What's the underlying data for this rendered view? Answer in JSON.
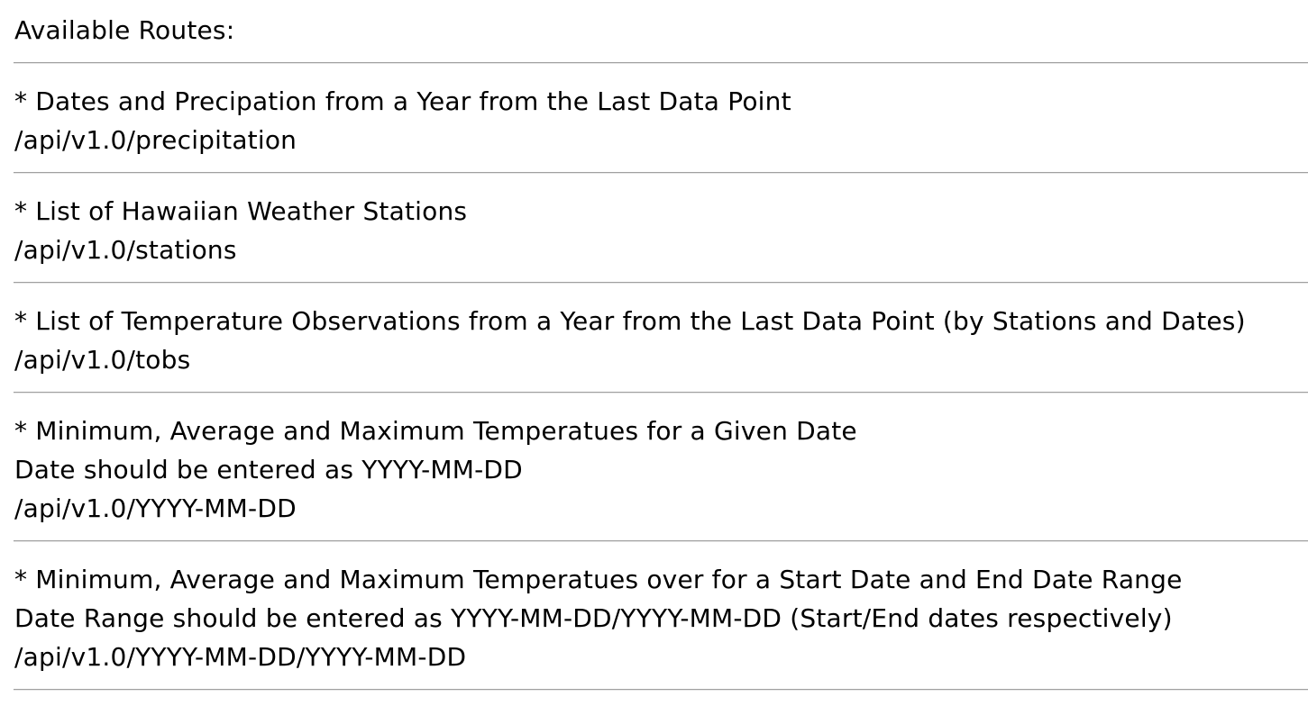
{
  "header": {
    "title": "Available Routes:"
  },
  "routes": [
    {
      "description": "* Dates and Precipation from a Year from the Last Data Point",
      "path": "/api/v1.0/precipitation"
    },
    {
      "description": "* List of Hawaiian Weather Stations",
      "path": "/api/v1.0/stations"
    },
    {
      "description": "* List of Temperature Observations from a Year from the Last Data Point (by Stations and Dates)",
      "path": "/api/v1.0/tobs"
    },
    {
      "description": "* Minimum, Average and Maximum Temperatues for a Given Date",
      "note": "Date should be entered as YYYY-MM-DD",
      "path": "/api/v1.0/YYYY-MM-DD"
    },
    {
      "description": "* Minimum, Average and Maximum Temperatues over for a Start Date and End Date Range",
      "note": "Date Range should be entered as YYYY-MM-DD/YYYY-MM-DD (Start/End dates respectively)",
      "path": "/api/v1.0/YYYY-MM-DD/YYYY-MM-DD"
    }
  ]
}
